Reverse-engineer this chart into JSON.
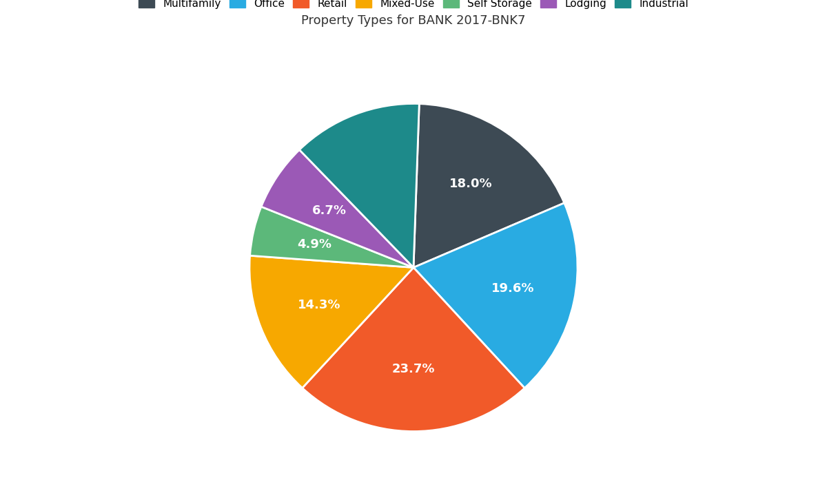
{
  "title": "Property Types for BANK 2017-BNK7",
  "labels": [
    "Multifamily",
    "Office",
    "Retail",
    "Mixed-Use",
    "Self Storage",
    "Lodging",
    "Industrial"
  ],
  "values": [
    18.0,
    19.6,
    23.7,
    14.3,
    4.9,
    6.7,
    12.8
  ],
  "colors": [
    "#3d4a54",
    "#29abe2",
    "#f15a29",
    "#f7a800",
    "#5cb87a",
    "#9b59b6",
    "#1d8a8a"
  ],
  "pct_labels": [
    "18.0%",
    "19.6%",
    "23.7%",
    "14.3%",
    "4.9%",
    "6.7%",
    ""
  ],
  "startangle": 88,
  "counterclock": false,
  "background_color": "#ffffff",
  "title_fontsize": 13,
  "label_fontsize": 13,
  "legend_fontsize": 11
}
